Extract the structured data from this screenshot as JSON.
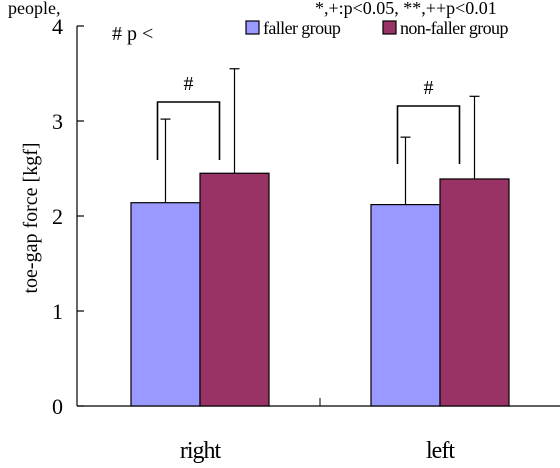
{
  "chart_data": {
    "type": "bar",
    "title": "",
    "xlabel": "",
    "ylabel": "toe-gap force [kgf]",
    "ylim": [
      0,
      4
    ],
    "yticks": [
      0,
      1,
      2,
      3,
      4
    ],
    "categories": [
      "right",
      "left"
    ],
    "series": [
      {
        "name": "faller group",
        "color": "#9999ff",
        "values": [
          2.14,
          2.12
        ],
        "error_upper": [
          3.02,
          2.83
        ]
      },
      {
        "name": "non-faller group",
        "color": "#993366",
        "values": [
          2.45,
          2.39
        ],
        "error_upper": [
          3.55,
          3.26
        ]
      }
    ],
    "significance": [
      "#",
      "#"
    ],
    "legend_position": "top-right",
    "grid": false,
    "annotations": {
      "top_left_text": "people,",
      "top_note": "*,+:p<0.05, **,++p<0.01",
      "legend_prefix": "# p <"
    }
  }
}
